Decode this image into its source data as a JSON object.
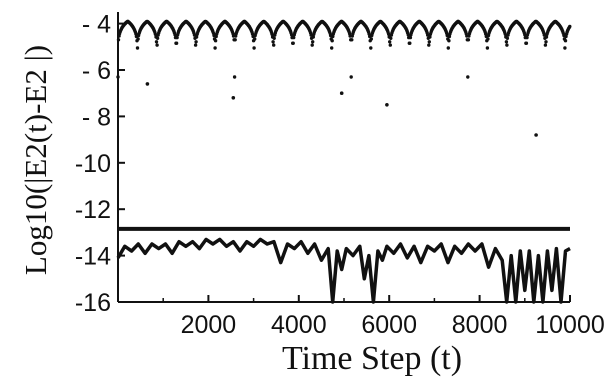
{
  "chart_data": {
    "type": "line",
    "xlabel": "Time Step (t)",
    "ylabel": "Log10(|E2(t)-E2 |)",
    "xlim": [
      0,
      10000
    ],
    "ylim": [
      -16,
      -3.5
    ],
    "xticks": [
      2000,
      4000,
      6000,
      8000,
      10000
    ],
    "yticks": [
      -4,
      -6,
      -8,
      -10,
      -12,
      -14,
      -16
    ],
    "xtick_labels": [
      "2000",
      "4000",
      "6000",
      "8000",
      "10000"
    ],
    "ytick_labels": [
      "- 4",
      "- 6",
      "- 8",
      "-10",
      "-12",
      "-14",
      "-16"
    ],
    "grid": false,
    "series": [
      {
        "style": "dotted-oscillating",
        "period": 430,
        "peak_y": -3.9,
        "trough_y": -6.3,
        "deep_points": [
          {
            "x": 650,
            "y": -6.6
          },
          {
            "x": 2550,
            "y": -7.2
          },
          {
            "x": 4950,
            "y": -7.0
          },
          {
            "x": 5950,
            "y": -7.5
          },
          {
            "x": 9250,
            "y": -8.8
          }
        ]
      },
      {
        "style": "flat",
        "x": [
          0,
          10000
        ],
        "y": [
          -12.85,
          -12.85
        ]
      },
      {
        "style": "irregular",
        "x": [
          0,
          150,
          300,
          450,
          600,
          750,
          900,
          1050,
          1200,
          1350,
          1500,
          1650,
          1800,
          1950,
          2100,
          2250,
          2400,
          2550,
          2700,
          2850,
          3000,
          3150,
          3300,
          3450,
          3600,
          3750,
          3900,
          4050,
          4200,
          4350,
          4500,
          4650,
          4750,
          4850,
          4950,
          5050,
          5200,
          5350,
          5450,
          5550,
          5650,
          5750,
          5850,
          5950,
          6100,
          6250,
          6400,
          6550,
          6700,
          6850,
          7000,
          7150,
          7300,
          7450,
          7600,
          7750,
          7900,
          8050,
          8200,
          8350,
          8500,
          8600,
          8700,
          8800,
          8900,
          9000,
          9100,
          9200,
          9300,
          9400,
          9500,
          9600,
          9700,
          9800,
          9900,
          10000
        ],
        "y": [
          -14.1,
          -13.6,
          -13.8,
          -13.5,
          -13.9,
          -13.5,
          -13.7,
          -13.5,
          -13.9,
          -13.4,
          -13.6,
          -13.4,
          -13.7,
          -13.3,
          -13.5,
          -13.3,
          -13.6,
          -13.4,
          -13.8,
          -13.4,
          -13.6,
          -13.3,
          -13.5,
          -13.4,
          -14.3,
          -13.5,
          -13.7,
          -13.4,
          -13.9,
          -13.5,
          -14.2,
          -13.7,
          -16.0,
          -13.8,
          -14.6,
          -13.7,
          -14.0,
          -13.6,
          -15.0,
          -14.0,
          -16.0,
          -13.8,
          -14.2,
          -13.6,
          -13.9,
          -13.5,
          -14.1,
          -13.6,
          -14.3,
          -13.6,
          -13.8,
          -13.5,
          -14.3,
          -13.6,
          -13.9,
          -13.5,
          -13.8,
          -13.5,
          -14.5,
          -13.7,
          -14.2,
          -16.0,
          -14.0,
          -16.0,
          -13.8,
          -15.5,
          -13.8,
          -16.0,
          -14.0,
          -16.0,
          -13.8,
          -15.5,
          -13.7,
          -16.0,
          -13.8,
          -13.7
        ]
      }
    ]
  }
}
